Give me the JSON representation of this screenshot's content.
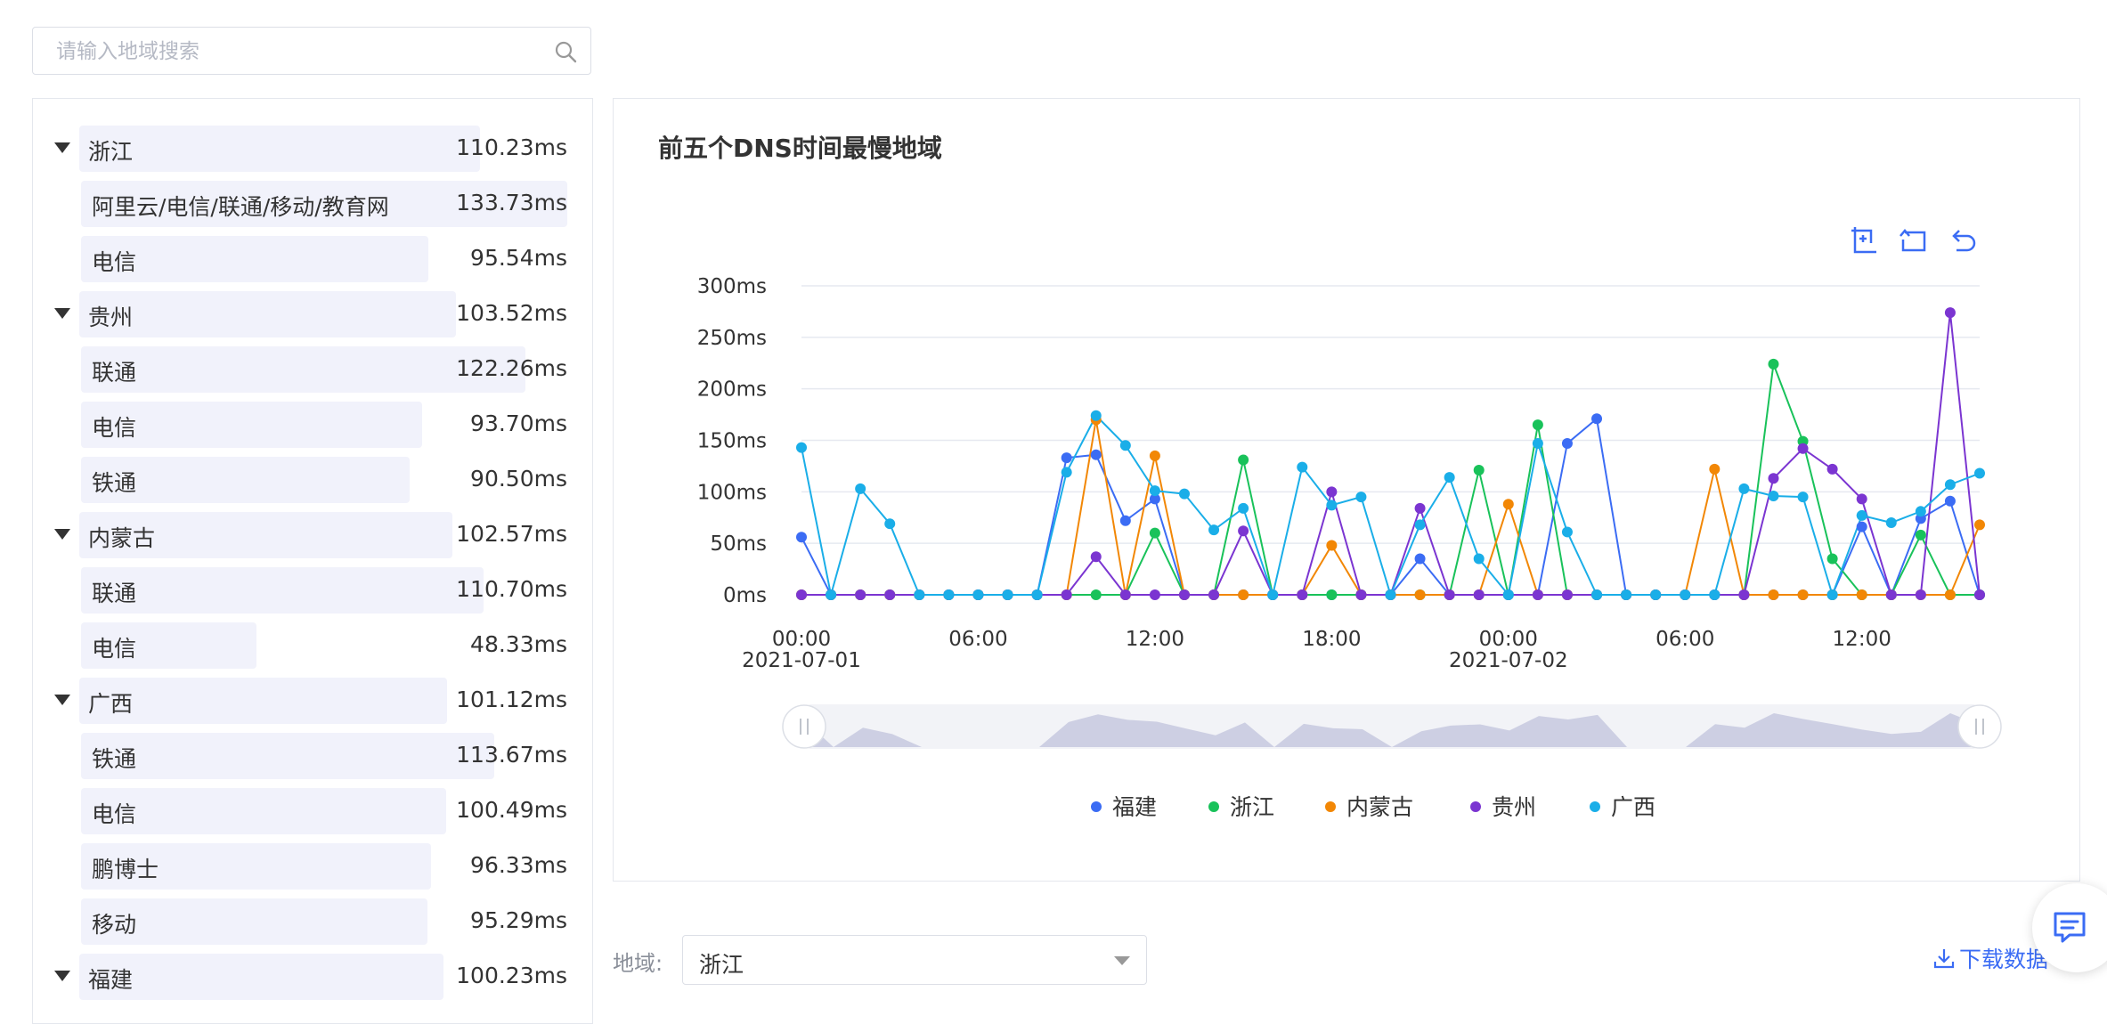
{
  "search": {
    "placeholder": "请输入地域搜索"
  },
  "tree": [
    {
      "level": 0,
      "name": "浙江",
      "value": "110.23ms",
      "ms": 110.23
    },
    {
      "level": 1,
      "name": "阿里云/电信/联通/移动/教育网",
      "value": "133.73ms",
      "ms": 133.73
    },
    {
      "level": 1,
      "name": "电信",
      "value": "95.54ms",
      "ms": 95.54
    },
    {
      "level": 0,
      "name": "贵州",
      "value": "103.52ms",
      "ms": 103.52
    },
    {
      "level": 1,
      "name": "联通",
      "value": "122.26ms",
      "ms": 122.26
    },
    {
      "level": 1,
      "name": "电信",
      "value": "93.70ms",
      "ms": 93.7
    },
    {
      "level": 1,
      "name": "铁通",
      "value": "90.50ms",
      "ms": 90.5
    },
    {
      "level": 0,
      "name": "内蒙古",
      "value": "102.57ms",
      "ms": 102.57
    },
    {
      "level": 1,
      "name": "联通",
      "value": "110.70ms",
      "ms": 110.7
    },
    {
      "level": 1,
      "name": "电信",
      "value": "48.33ms",
      "ms": 48.33
    },
    {
      "level": 0,
      "name": "广西",
      "value": "101.12ms",
      "ms": 101.12
    },
    {
      "level": 1,
      "name": "铁通",
      "value": "113.67ms",
      "ms": 113.67
    },
    {
      "level": 1,
      "name": "电信",
      "value": "100.49ms",
      "ms": 100.49
    },
    {
      "level": 1,
      "name": "鹏博士",
      "value": "96.33ms",
      "ms": 96.33
    },
    {
      "level": 1,
      "name": "移动",
      "value": "95.29ms",
      "ms": 95.29
    },
    {
      "level": 0,
      "name": "福建",
      "value": "100.23ms",
      "ms": 100.23
    }
  ],
  "chart": {
    "title": "前五个DNS时间最慢地域"
  },
  "chart_data": {
    "type": "line",
    "title": "前五个DNS时间最慢地域",
    "xlabel": "",
    "ylabel": "",
    "y_unit": "ms",
    "ylim": [
      0,
      300
    ],
    "yticks": [
      0,
      50,
      100,
      150,
      200,
      250,
      300
    ],
    "xlim": [
      "2021-07-01 00:00",
      "2021-07-02 16:00"
    ],
    "x_tick_labels": [
      {
        "time": "00:00",
        "date": "2021-07-01"
      },
      {
        "time": "06:00",
        "date": ""
      },
      {
        "time": "12:00",
        "date": ""
      },
      {
        "time": "18:00",
        "date": ""
      },
      {
        "time": "00:00",
        "date": "2021-07-02"
      },
      {
        "time": "06:00",
        "date": ""
      },
      {
        "time": "12:00",
        "date": ""
      }
    ],
    "x_tick_hours": [
      0,
      6,
      12,
      18,
      24,
      30,
      36
    ],
    "x_hours": [
      0,
      1,
      2,
      3,
      4,
      5,
      6,
      7,
      8,
      9,
      10,
      11,
      12,
      13,
      14,
      15,
      16,
      17,
      18,
      19,
      20,
      21,
      22,
      23,
      24,
      25,
      26,
      27,
      28,
      29,
      30,
      31,
      32,
      33,
      34,
      35,
      36,
      37,
      38,
      39,
      40
    ],
    "grid": true,
    "legend_position": "bottom",
    "series": [
      {
        "name": "福建",
        "color": "#3b6cf4",
        "values": [
          56,
          0,
          0,
          0,
          0,
          0,
          0,
          0,
          0,
          133,
          136,
          72,
          93,
          0,
          0,
          0,
          0,
          0,
          0,
          0,
          0,
          35,
          0,
          0,
          0,
          0,
          147,
          171,
          0,
          0,
          0,
          0,
          0,
          0,
          0,
          0,
          66,
          0,
          74,
          91,
          0
        ]
      },
      {
        "name": "浙江",
        "color": "#19c25a",
        "values": [
          0,
          0,
          0,
          0,
          0,
          0,
          0,
          0,
          0,
          0,
          0,
          0,
          60,
          0,
          0,
          131,
          0,
          0,
          0,
          0,
          0,
          0,
          0,
          121,
          0,
          165,
          0,
          0,
          0,
          0,
          0,
          0,
          0,
          224,
          149,
          35,
          0,
          0,
          58,
          0,
          0
        ]
      },
      {
        "name": "内蒙古",
        "color": "#f28705",
        "values": [
          0,
          0,
          0,
          0,
          0,
          0,
          0,
          0,
          0,
          0,
          170,
          0,
          135,
          0,
          0,
          0,
          0,
          0,
          48,
          0,
          0,
          0,
          0,
          0,
          88,
          0,
          0,
          0,
          0,
          0,
          0,
          122,
          0,
          0,
          0,
          0,
          0,
          0,
          0,
          0,
          68
        ]
      },
      {
        "name": "贵州",
        "color": "#7b35d1",
        "values": [
          0,
          0,
          0,
          0,
          0,
          0,
          0,
          0,
          0,
          0,
          37,
          0,
          0,
          0,
          0,
          62,
          0,
          0,
          100,
          0,
          0,
          84,
          0,
          0,
          0,
          0,
          0,
          0,
          0,
          0,
          0,
          0,
          0,
          113,
          142,
          122,
          93,
          0,
          0,
          274,
          0
        ]
      },
      {
        "name": "广西",
        "color": "#1aaee8",
        "values": [
          143,
          0,
          103,
          69,
          0,
          0,
          0,
          0,
          0,
          119,
          174,
          145,
          101,
          98,
          63,
          84,
          0,
          124,
          87,
          95,
          0,
          68,
          114,
          35,
          0,
          147,
          61,
          0,
          0,
          0,
          0,
          0,
          103,
          96,
          95,
          0,
          77,
          70,
          81,
          107,
          118
        ]
      }
    ]
  },
  "toolbar": {
    "zoom_icon": "zoom-select-icon",
    "reset_icon": "zoom-reset-icon",
    "undo_icon": "undo-icon"
  },
  "filter": {
    "label": "地域:",
    "value": "浙江"
  },
  "download": {
    "label": "下载数据"
  },
  "feedback": {
    "icon": "chat-icon"
  }
}
